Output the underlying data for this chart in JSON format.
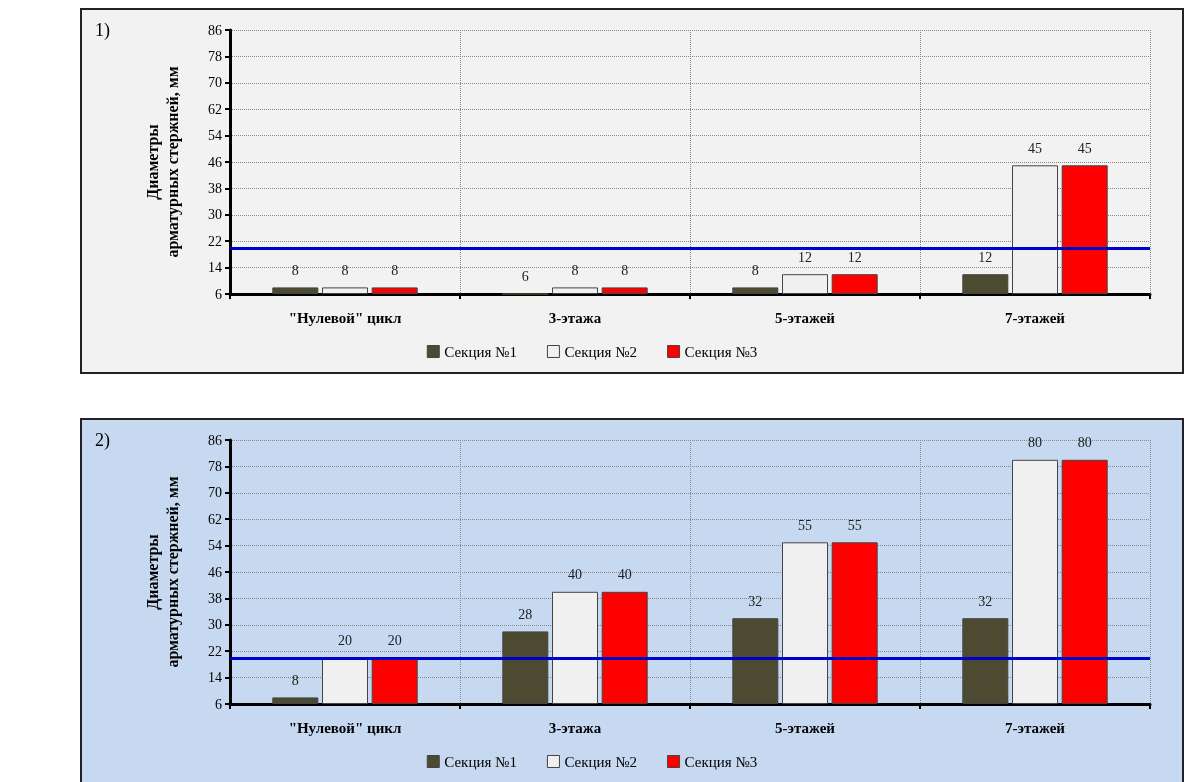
{
  "chart_data": [
    {
      "type": "bar",
      "title": "1)",
      "ylabel": "Диаметры арматурных стержней, мм",
      "categories": [
        "\"Нулевой\" цикл",
        "3-этажа",
        "5-этажей",
        "7-этажей"
      ],
      "series": [
        {
          "name": "Секция №1",
          "color": "#4d4a32",
          "values": [
            8,
            6,
            8,
            12
          ]
        },
        {
          "name": "Секция №2",
          "color": "#f0f0f0",
          "values": [
            8,
            8,
            12,
            45
          ]
        },
        {
          "name": "Секция №3",
          "color": "#ff0000",
          "values": [
            8,
            8,
            12,
            45
          ]
        }
      ],
      "ylim": [
        6,
        86
      ],
      "yticks": [
        6,
        14,
        22,
        30,
        38,
        46,
        54,
        62,
        70,
        78,
        86
      ],
      "grid": true,
      "legend": "bottom",
      "data_labels": true,
      "ref_lines": [
        {
          "axis": "y",
          "value": 20,
          "color": "#0000cc"
        }
      ]
    },
    {
      "type": "bar",
      "title": "2)",
      "ylabel": "Диаметры арматурных стержней, мм",
      "categories": [
        "\"Нулевой\" цикл",
        "3-этажа",
        "5-этажей",
        "7-этажей"
      ],
      "series": [
        {
          "name": "Секция №1",
          "color": "#4d4a32",
          "values": [
            8,
            28,
            32,
            32
          ]
        },
        {
          "name": "Секция №2",
          "color": "#f0f0f0",
          "values": [
            20,
            40,
            55,
            80
          ]
        },
        {
          "name": "Секция №3",
          "color": "#ff0000",
          "values": [
            20,
            40,
            55,
            80
          ]
        }
      ],
      "ylim": [
        6,
        86
      ],
      "yticks": [
        6,
        14,
        22,
        30,
        38,
        46,
        54,
        62,
        70,
        78,
        86
      ],
      "grid": true,
      "legend": "bottom",
      "data_labels": true,
      "ref_lines": [
        {
          "axis": "y",
          "value": 20,
          "color": "#0000cc"
        }
      ]
    }
  ]
}
